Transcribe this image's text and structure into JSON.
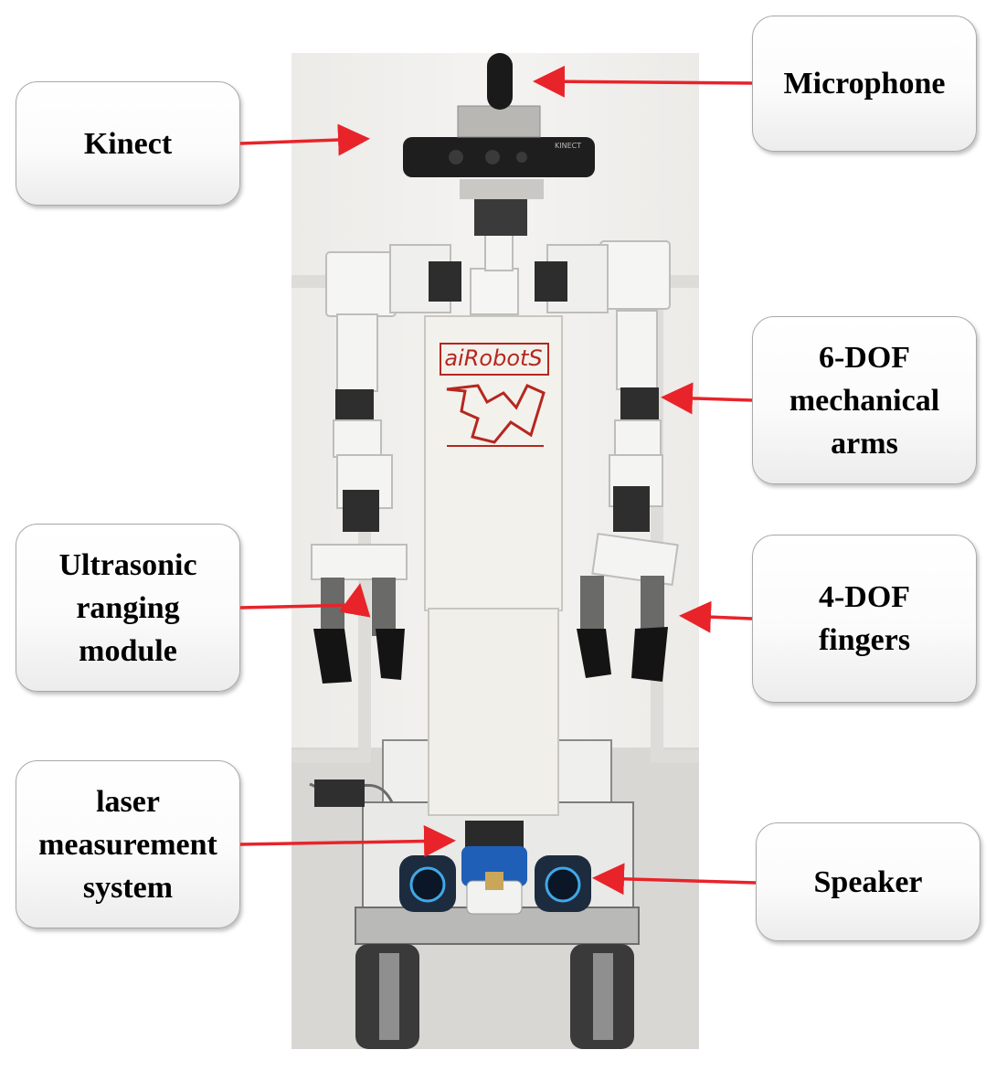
{
  "labels": {
    "kinect": "Kinect",
    "microphone": "Microphone",
    "arms": "6-DOF\nmechanical\narms",
    "ultrasonic": "Ultrasonic\nranging\nmodule",
    "fingers": "4-DOF\nfingers",
    "laser": "laser\nmeasurement\nsystem",
    "speaker": "Speaker"
  },
  "photo": {
    "shirt_logo": "aiRobotS",
    "kinect_brand": "KINECT"
  },
  "colors": {
    "arrow": "#e8232a",
    "box_border": "#a9a9a9",
    "wall": "#efeeeb",
    "robot_white": "#f4f4f2",
    "logo_red": "#b5271f",
    "dark_part": "#1e1e1e",
    "lidar_blue": "#1f5fb8"
  }
}
